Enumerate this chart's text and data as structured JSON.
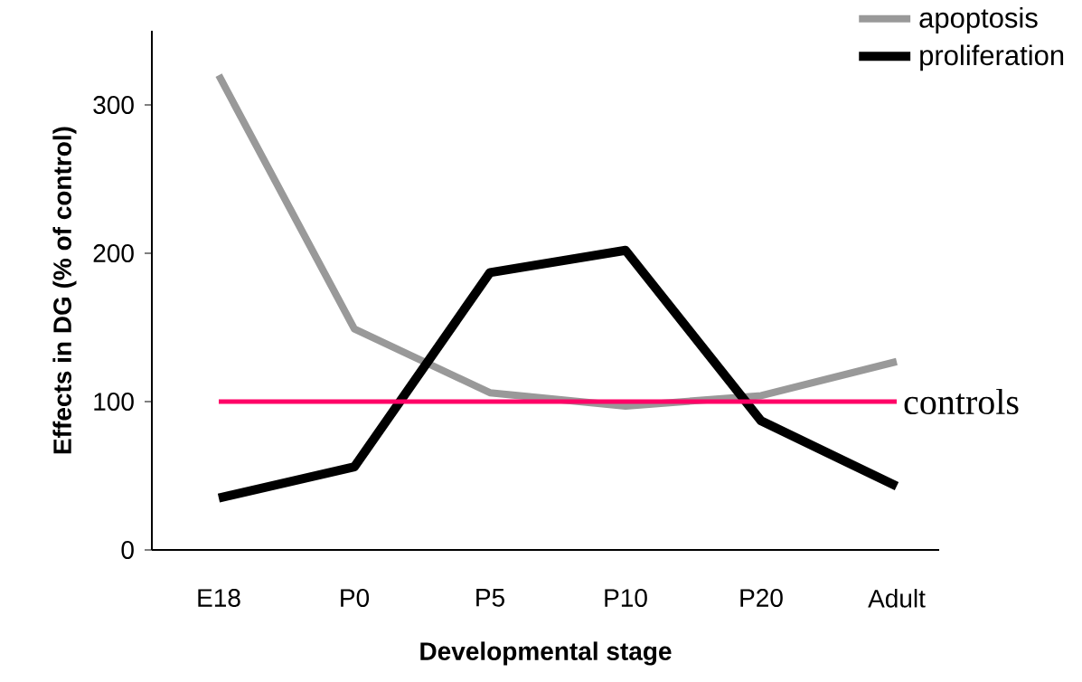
{
  "chart_data": {
    "type": "line",
    "xlabel": "Developmental stage",
    "ylabel": "Effects in DG (% of control)",
    "categories": [
      "E18",
      "P0",
      "P5",
      "P10",
      "P20",
      "Adult"
    ],
    "series": [
      {
        "name": "apoptosis",
        "color": "#999999",
        "values": [
          320,
          149,
          106,
          97,
          104,
          127
        ]
      },
      {
        "name": "proliferation",
        "color": "#000000",
        "values": [
          35,
          56,
          187,
          202,
          87,
          43
        ]
      }
    ],
    "ref_lines": [
      {
        "axis": "y",
        "value": 100,
        "label": "controls",
        "color": "#ff0066"
      }
    ],
    "ylim": [
      0,
      350
    ],
    "yticks": [
      0,
      100,
      200,
      300
    ],
    "legend": "top right"
  }
}
